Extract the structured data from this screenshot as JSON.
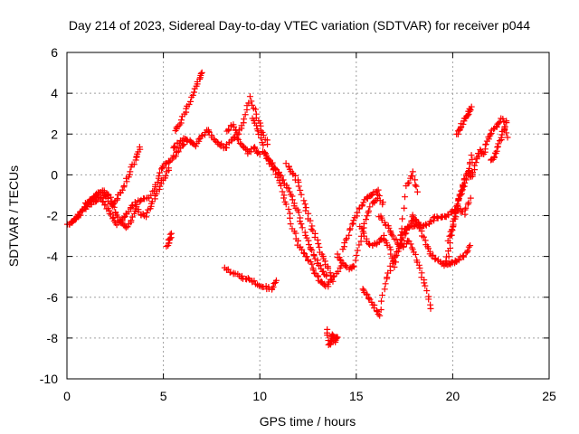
{
  "chart_data": {
    "type": "scatter",
    "title": "Day 214 of 2023, Sidereal Day-to-day VTEC variation (SDTVAR) for receiver p044",
    "xlabel": "GPS time / hours",
    "ylabel": "SDTVAR / TECUs",
    "xlim": [
      0,
      25
    ],
    "ylim": [
      -10,
      6
    ],
    "xticks": [
      "0",
      "5",
      "10",
      "15",
      "20",
      "25"
    ],
    "yticks": [
      "-10",
      "-8",
      "-6",
      "-4",
      "-2",
      "0",
      "2",
      "4",
      "6"
    ],
    "grid": true,
    "marker": "+",
    "color": "#ff0000",
    "series": [
      {
        "x": [
          0.0,
          0.3,
          0.6,
          0.9,
          1.2,
          1.5,
          1.8,
          2.1,
          2.4,
          2.7,
          3.0,
          3.3,
          3.6,
          3.8
        ],
        "y": [
          -2.5,
          -2.3,
          -2.0,
          -1.6,
          -1.3,
          -1.0,
          -0.8,
          -1.2,
          -1.5,
          -1.0,
          -0.5,
          0.2,
          0.8,
          1.3
        ]
      },
      {
        "x": [
          0.2,
          0.5,
          0.8,
          1.1,
          1.4,
          1.7,
          2.0,
          2.3,
          2.6,
          2.9,
          3.2,
          3.5,
          3.8,
          4.1,
          4.4,
          4.7,
          5.0,
          5.3
        ],
        "y": [
          -2.4,
          -2.1,
          -1.8,
          -1.5,
          -1.3,
          -1.1,
          -1.5,
          -2.0,
          -2.4,
          -2.2,
          -1.8,
          -1.4,
          -1.9,
          -2.0,
          -1.4,
          -0.8,
          -0.2,
          0.3
        ]
      },
      {
        "x": [
          1.0,
          1.3,
          1.6,
          1.9,
          2.2,
          2.5,
          2.8,
          3.1,
          3.4,
          3.7,
          4.0,
          4.3,
          4.6,
          4.9,
          5.2,
          5.5,
          5.8,
          6.1
        ],
        "y": [
          -1.4,
          -1.2,
          -1.0,
          -0.8,
          -1.0,
          -1.8,
          -2.3,
          -2.6,
          -2.1,
          -1.3,
          -1.2,
          -1.1,
          -0.5,
          0.3,
          0.6,
          0.8,
          1.2,
          1.5
        ]
      },
      {
        "x": [
          5.2,
          5.3,
          5.4
        ],
        "y": [
          -3.5,
          -3.2,
          -2.9
        ]
      },
      {
        "x": [
          5.5,
          5.8,
          6.1,
          6.4,
          6.7,
          7.0,
          7.3,
          7.6,
          7.9,
          8.2,
          8.5,
          8.8,
          9.1,
          9.4,
          9.7,
          10.0
        ],
        "y": [
          1.3,
          1.6,
          1.8,
          1.6,
          1.4,
          1.9,
          2.2,
          1.8,
          1.5,
          1.3,
          1.7,
          1.9,
          1.4,
          1.1,
          1.3,
          1.0
        ]
      },
      {
        "x": [
          5.6,
          5.9,
          6.2,
          6.5,
          6.8,
          7.0
        ],
        "y": [
          2.2,
          2.6,
          3.2,
          3.9,
          4.6,
          5.0
        ]
      },
      {
        "x": [
          8.3,
          8.6,
          8.9,
          9.2,
          9.5,
          9.8,
          10.1,
          10.4
        ],
        "y": [
          2.2,
          2.4,
          2.0,
          2.7,
          3.8,
          3.0,
          2.2,
          1.5
        ]
      },
      {
        "x": [
          8.2,
          8.6,
          9.0,
          9.4,
          9.8,
          10.2,
          10.6,
          10.9
        ],
        "y": [
          -4.6,
          -4.8,
          -5.0,
          -5.1,
          -5.3,
          -5.5,
          -5.6,
          -5.2
        ]
      },
      {
        "x": [
          9.6,
          9.9,
          10.2,
          10.5,
          10.8,
          11.1,
          11.4,
          11.7,
          12.0,
          12.3,
          12.6,
          12.9,
          13.2,
          13.5,
          13.8,
          14.2
        ],
        "y": [
          2.7,
          2.2,
          1.2,
          0.6,
          0.2,
          -0.6,
          -1.5,
          -2.6,
          -3.4,
          -3.9,
          -4.3,
          -4.9,
          -5.3,
          -5.5,
          -5.0,
          -4.5
        ]
      },
      {
        "x": [
          10.2,
          10.5,
          10.8,
          11.1,
          11.4,
          11.7,
          12.0,
          12.3,
          12.6,
          12.9,
          13.2,
          13.5
        ],
        "y": [
          1.1,
          0.7,
          0.3,
          -0.1,
          -0.6,
          -1.2,
          -1.9,
          -2.8,
          -3.5,
          -4.1,
          -4.6,
          -5.0
        ]
      },
      {
        "x": [
          11.4,
          11.7,
          12.0,
          12.3,
          12.6,
          12.9,
          13.2,
          13.5,
          13.8
        ],
        "y": [
          0.5,
          0.1,
          -0.4,
          -1.4,
          -2.3,
          -3.1,
          -3.9,
          -4.5,
          -5.2
        ]
      },
      {
        "x": [
          13.5,
          13.6,
          13.7,
          13.8,
          13.9,
          14.0
        ],
        "y": [
          -7.6,
          -8.4,
          -8.1,
          -7.8,
          -8.2,
          -7.9
        ]
      },
      {
        "x": [
          14.0,
          14.3,
          14.6,
          14.9,
          15.2,
          15.5,
          15.8,
          16.1
        ],
        "y": [
          -3.9,
          -4.3,
          -4.6,
          -4.5,
          -3.2,
          -2.2,
          -1.4,
          -1.2
        ]
      },
      {
        "x": [
          14.3,
          14.6,
          14.9,
          15.2,
          15.5,
          15.8,
          16.1,
          16.4
        ],
        "y": [
          -3.7,
          -2.9,
          -2.2,
          -1.6,
          -1.2,
          -1.0,
          -0.8,
          -1.5
        ]
      },
      {
        "x": [
          15.3,
          15.6,
          15.9,
          16.2,
          16.5,
          16.8,
          17.1,
          17.4,
          17.7,
          18.0
        ],
        "y": [
          -5.6,
          -6.0,
          -6.4,
          -6.9,
          -5.3,
          -4.5,
          -3.8,
          -3.2,
          -2.6,
          -2.1
        ]
      },
      {
        "x": [
          15.2,
          15.5,
          15.8,
          16.1,
          16.4,
          16.7,
          17.0,
          17.3,
          17.6,
          17.9,
          18.2
        ],
        "y": [
          -2.5,
          -3.2,
          -3.5,
          -3.3,
          -3.0,
          -3.5,
          -4.5,
          -3.1,
          -0.6,
          0.1,
          -0.8
        ]
      },
      {
        "x": [
          16.2,
          16.5,
          16.8,
          17.1,
          17.4,
          17.7,
          18.0,
          18.3,
          18.6,
          18.9
        ],
        "y": [
          -2.0,
          -2.4,
          -2.8,
          -3.3,
          -3.6,
          -3.2,
          -3.8,
          -4.6,
          -5.5,
          -6.6
        ]
      },
      {
        "x": [
          17.3,
          17.6,
          17.9,
          18.2,
          18.5,
          18.8,
          19.1,
          19.4,
          19.7,
          20.0,
          20.3,
          20.6,
          20.9
        ],
        "y": [
          -3.0,
          -2.6,
          -2.5,
          -2.4,
          -2.5,
          -2.4,
          -2.1,
          -2.1,
          -2.0,
          -1.8,
          -1.7,
          -1.9,
          -1.2
        ]
      },
      {
        "x": [
          17.9,
          18.2,
          18.5,
          18.8,
          19.1,
          19.4,
          19.7,
          20.0,
          20.3,
          20.6,
          20.9
        ],
        "y": [
          -2.0,
          -2.4,
          -3.1,
          -3.8,
          -4.1,
          -4.3,
          -4.4,
          -4.3,
          -4.2,
          -3.9,
          -3.5
        ]
      },
      {
        "x": [
          19.6,
          19.8,
          20.0,
          20.2,
          20.4,
          20.6,
          20.8,
          21.0
        ],
        "y": [
          -4.5,
          -3.8,
          -2.5,
          -1.8,
          -1.0,
          -0.3,
          0.2,
          0.9
        ]
      },
      {
        "x": [
          19.8,
          20.0,
          20.2,
          20.4,
          20.6,
          20.8,
          21.0,
          21.2,
          21.4,
          21.6,
          21.8,
          22.0,
          22.3,
          22.6,
          22.8
        ],
        "y": [
          -3.2,
          -2.5,
          -1.5,
          -0.9,
          -0.5,
          0.2,
          -0.1,
          0.6,
          1.2,
          1.0,
          1.7,
          2.1,
          2.4,
          2.8,
          1.8
        ]
      },
      {
        "x": [
          20.2,
          20.4,
          20.6,
          20.8,
          21.0
        ],
        "y": [
          2.0,
          2.3,
          2.7,
          3.0,
          3.3
        ]
      },
      {
        "x": [
          22.0,
          22.2,
          22.4,
          22.6,
          22.8
        ],
        "y": [
          0.7,
          1.0,
          1.5,
          2.1,
          2.6
        ]
      }
    ]
  }
}
